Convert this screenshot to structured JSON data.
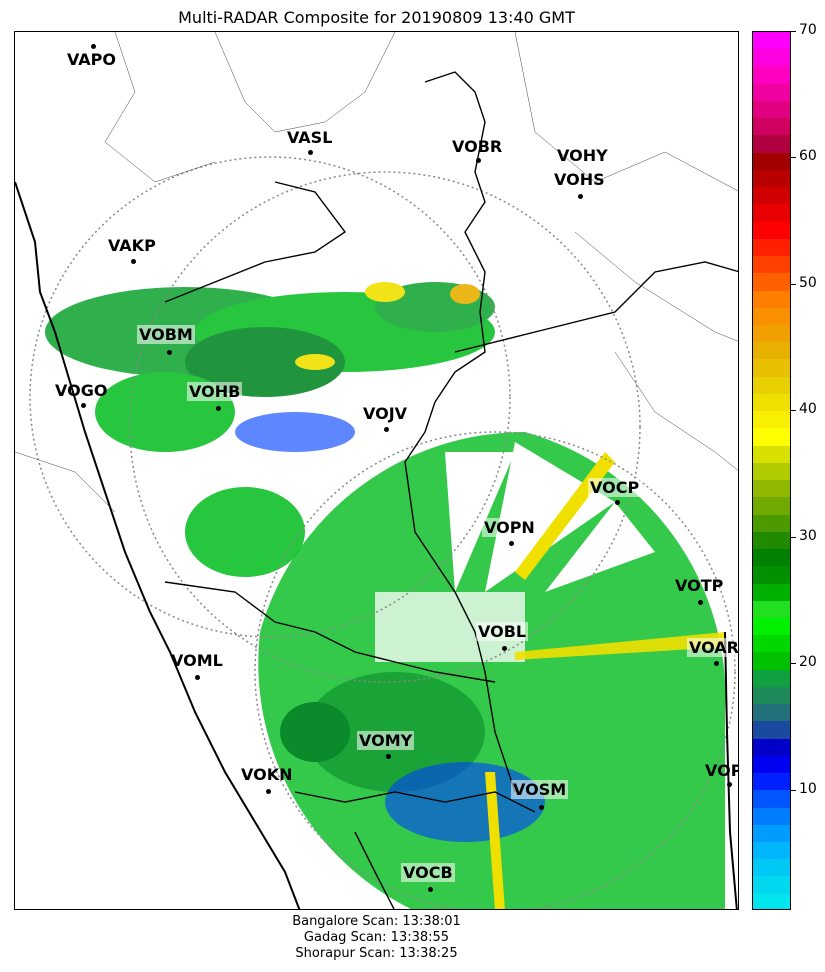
{
  "title": "Multi-RADAR Composite for 20190809 13:40 GMT",
  "colorbar": {
    "ticks": [
      10,
      20,
      30,
      40,
      50,
      60,
      70
    ],
    "min": 0.5,
    "max": 70,
    "colors": [
      "#00e5ee",
      "#00d8f0",
      "#00c8f5",
      "#00b5fa",
      "#009dff",
      "#007dff",
      "#0055ff",
      "#0020ff",
      "#0000f0",
      "#0000c8",
      "#1a4aa0",
      "#22707a",
      "#1e8a5a",
      "#10a040",
      "#00c000",
      "#00d800",
      "#00f000",
      "#20e020",
      "#00b000",
      "#009000",
      "#008000",
      "#208a00",
      "#4a9a00",
      "#70aa00",
      "#90b800",
      "#b0cc00",
      "#d8e000",
      "#ffff00",
      "#f8f000",
      "#f0e000",
      "#e8d000",
      "#e8c000",
      "#e8b000",
      "#f0a000",
      "#f89000",
      "#ff8000",
      "#ff6000",
      "#ff4000",
      "#ff2000",
      "#ff0000",
      "#e80000",
      "#d00000",
      "#b80000",
      "#a00000",
      "#b00040",
      "#d00060",
      "#e00080",
      "#f000a0",
      "#ff00c0",
      "#ff00e0",
      "#ff00ff"
    ]
  },
  "stations": [
    {
      "name": "VAPO",
      "hl": false
    },
    {
      "name": "VASL",
      "hl": false
    },
    {
      "name": "VOBR",
      "hl": false
    },
    {
      "name": "VOHY",
      "hl": false
    },
    {
      "name": "VOHS",
      "hl": false
    },
    {
      "name": "VAKP",
      "hl": false
    },
    {
      "name": "VOBM",
      "hl": true
    },
    {
      "name": "VOGO",
      "hl": false
    },
    {
      "name": "VOHB",
      "hl": true
    },
    {
      "name": "VOJV",
      "hl": false
    },
    {
      "name": "VOCP",
      "hl": true
    },
    {
      "name": "VOPN",
      "hl": true
    },
    {
      "name": "VOTP",
      "hl": false
    },
    {
      "name": "VOBL",
      "hl": true
    },
    {
      "name": "VOAR",
      "hl": true
    },
    {
      "name": "VOML",
      "hl": false
    },
    {
      "name": "VOMY",
      "hl": true
    },
    {
      "name": "VOKN",
      "hl": false
    },
    {
      "name": "VOSM",
      "hl": true
    },
    {
      "name": "VOPC",
      "hl": false
    },
    {
      "name": "VOCB",
      "hl": true
    }
  ],
  "footer": {
    "line1": "Bangalore Scan: 13:38:01",
    "line2": "Gadag Scan: 13:38:55",
    "line3": "Shorapur Scan: 13:38:25"
  }
}
